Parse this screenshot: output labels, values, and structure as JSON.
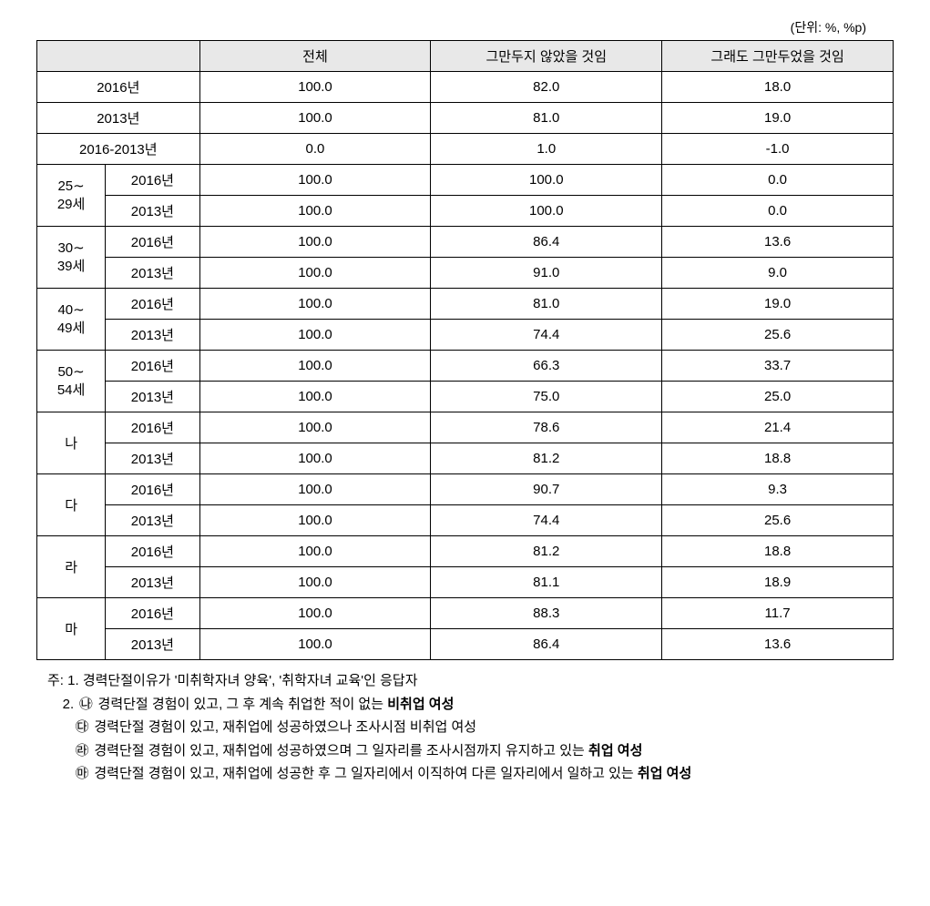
{
  "unit_label": "(단위: %, %p)",
  "columns": {
    "c1": "전체",
    "c2": "그만두지 않았을 것임",
    "c3": "그래도 그만두었을 것임"
  },
  "rows": [
    {
      "span_label": "",
      "sub": "2016년",
      "v1": "100.0",
      "v2": "82.0",
      "v3": "18.0",
      "colspan2": true
    },
    {
      "span_label": "",
      "sub": "2013년",
      "v1": "100.0",
      "v2": "81.0",
      "v3": "19.0",
      "colspan2": true
    },
    {
      "span_label": "",
      "sub": "2016-2013년",
      "v1": "0.0",
      "v2": "1.0",
      "v3": "-1.0",
      "colspan2": true
    },
    {
      "span_label": "25∼\n29세",
      "sub": "2016년",
      "v1": "100.0",
      "v2": "100.0",
      "v3": "0.0",
      "rowspan": 2
    },
    {
      "sub": "2013년",
      "v1": "100.0",
      "v2": "100.0",
      "v3": "0.0"
    },
    {
      "span_label": "30∼\n39세",
      "sub": "2016년",
      "v1": "100.0",
      "v2": "86.4",
      "v3": "13.6",
      "rowspan": 2
    },
    {
      "sub": "2013년",
      "v1": "100.0",
      "v2": "91.0",
      "v3": "9.0"
    },
    {
      "span_label": "40∼\n49세",
      "sub": "2016년",
      "v1": "100.0",
      "v2": "81.0",
      "v3": "19.0",
      "rowspan": 2
    },
    {
      "sub": "2013년",
      "v1": "100.0",
      "v2": "74.4",
      "v3": "25.6"
    },
    {
      "span_label": "50∼\n54세",
      "sub": "2016년",
      "v1": "100.0",
      "v2": "66.3",
      "v3": "33.7",
      "rowspan": 2
    },
    {
      "sub": "2013년",
      "v1": "100.0",
      "v2": "75.0",
      "v3": "25.0"
    },
    {
      "span_label": "나",
      "sub": "2016년",
      "v1": "100.0",
      "v2": "78.6",
      "v3": "21.4",
      "rowspan": 2
    },
    {
      "sub": "2013년",
      "v1": "100.0",
      "v2": "81.2",
      "v3": "18.8"
    },
    {
      "span_label": "다",
      "sub": "2016년",
      "v1": "100.0",
      "v2": "90.7",
      "v3": "9.3",
      "rowspan": 2
    },
    {
      "sub": "2013년",
      "v1": "100.0",
      "v2": "74.4",
      "v3": "25.6"
    },
    {
      "span_label": "라",
      "sub": "2016년",
      "v1": "100.0",
      "v2": "81.2",
      "v3": "18.8",
      "rowspan": 2
    },
    {
      "sub": "2013년",
      "v1": "100.0",
      "v2": "81.1",
      "v3": "18.9"
    },
    {
      "span_label": "마",
      "sub": "2016년",
      "v1": "100.0",
      "v2": "88.3",
      "v3": "11.7",
      "rowspan": 2
    },
    {
      "sub": "2013년",
      "v1": "100.0",
      "v2": "86.4",
      "v3": "13.6"
    }
  ],
  "notes": {
    "prefix_main": "주: ",
    "line1_prefix": "1. ",
    "line1": "경력단절이유가 '미취학자녀 양육', '취학자녀 교육'인 응답자",
    "line2_prefix": "2. ",
    "line2_sym": "㉯",
    "line2_a": " 경력단절 경험이 있고, 그 후 계속 취업한 적이 없는 ",
    "line2_bold": "비취업 여성",
    "line3_sym": "㉰",
    "line3": " 경력단절 경험이 있고, 재취업에 성공하였으나 조사시점 비취업 여성",
    "line4_sym": "㉱",
    "line4_a": " 경력단절 경험이 있고, 재취업에 성공하였으며 그 일자리를 조사시점까지 유지하고 있는 ",
    "line4_bold": "취업 여성",
    "line5_sym": "㉲",
    "line5_a": " 경력단절 경험이 있고, 재취업에 성공한 후 그 일자리에서 이직하여 다른 일자리에서 일하고 있는 ",
    "line5_bold": "취업 여성"
  }
}
